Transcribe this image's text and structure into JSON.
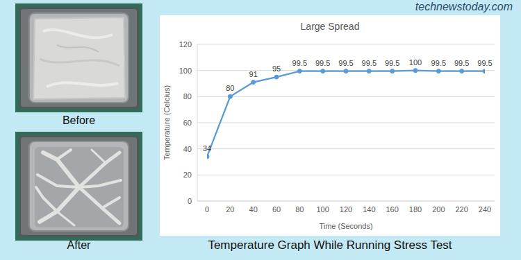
{
  "chart_data": {
    "type": "line",
    "title": "Large Spread",
    "x": [
      0,
      20,
      40,
      60,
      80,
      100,
      120,
      140,
      160,
      180,
      200,
      220,
      240
    ],
    "values": [
      34,
      80,
      91,
      95,
      99.5,
      99.5,
      99.5,
      99.5,
      99.5,
      100,
      99.5,
      99.5,
      99.5
    ],
    "xlim": [
      0,
      240
    ],
    "xticks": [
      0,
      20,
      40,
      60,
      80,
      100,
      120,
      140,
      160,
      180,
      200,
      220,
      240
    ],
    "ylim": [
      0,
      120
    ],
    "yticks": [
      0,
      20,
      40,
      60,
      80,
      100,
      120
    ],
    "xlabel": "Time (Seconds)",
    "ylabel": "Temperature (Celcius)",
    "color": "#5b9bd5",
    "marker": "circle",
    "line_style": "solid",
    "grid": true,
    "data_labels": true
  },
  "photos": [
    {
      "label": "Before"
    },
    {
      "label": "After"
    }
  ],
  "caption": "Temperature Graph While Running Stress Test",
  "watermark": "technewstoday.com"
}
